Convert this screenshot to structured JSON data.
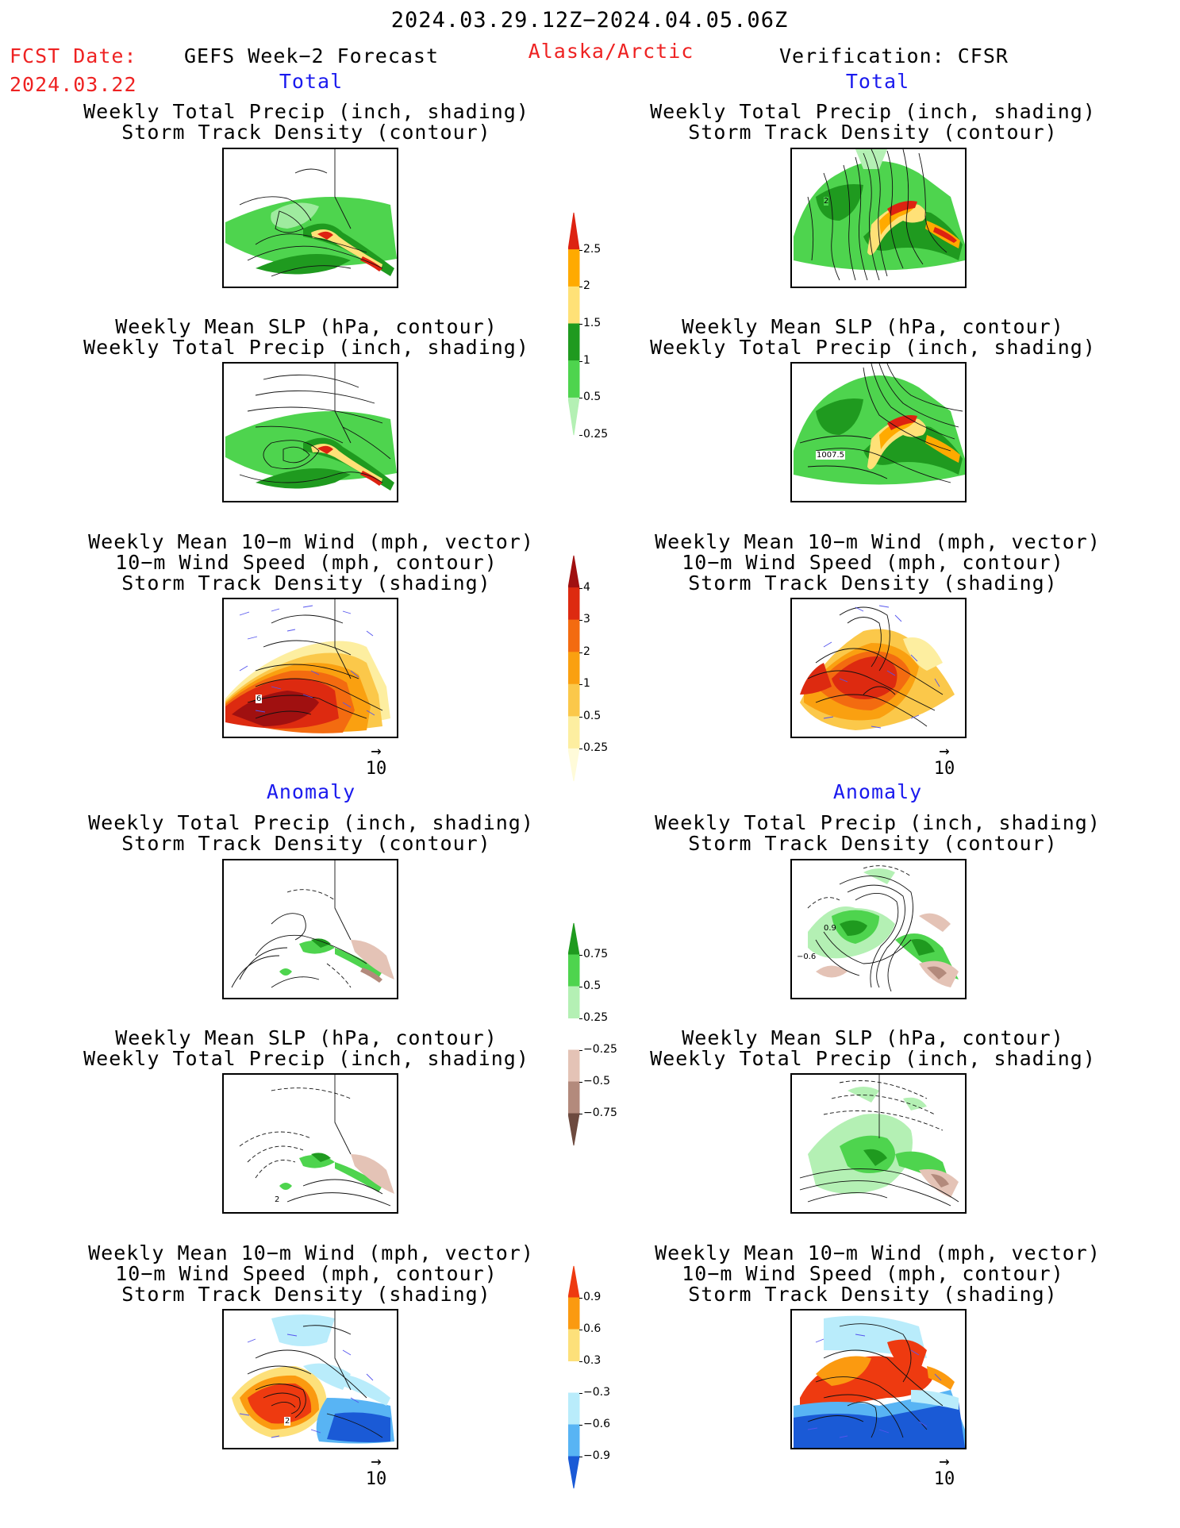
{
  "header": {
    "date_range": "2024.03.29.12Z−2024.04.05.06Z",
    "fcst_label": "FCST Date:",
    "fcst_date": "2024.03.22",
    "product": "GEFS Week−2 Forecast",
    "region": "Alaska/Arctic",
    "verification": "Verification: CFSR"
  },
  "sections": {
    "total_left": "Total",
    "total_right": "Total",
    "anomaly_left": "Anomaly",
    "anomaly_right": "Anomaly"
  },
  "panel_titles": {
    "precip_storm": [
      "Weekly Total Precip (inch, shading)",
      "Storm Track Density (contour)"
    ],
    "slp_precip": [
      "Weekly Mean SLP (hPa, contour)",
      "Weekly Total Precip (inch, shading)"
    ],
    "wind_storm": [
      "Weekly Mean 10−m Wind (mph, vector)",
      "10−m Wind Speed (mph, contour)",
      "Storm Track Density (shading)"
    ]
  },
  "map_labels": {
    "r1_right": "2",
    "r2_right": "1007.5",
    "r3_left": "6",
    "r4_right_a": "0.9",
    "r4_right_b": "−0.6",
    "r5_left": "2",
    "r6_left": "2"
  },
  "vector_scale": "10",
  "colorbars": {
    "precip_total": {
      "labels": [
        "2.5",
        "2",
        "1.5",
        "1",
        "0.5",
        "0.25"
      ],
      "colors": [
        "#dd2211",
        "#ffaa00",
        "#ffe177",
        "#1f9a1f",
        "#4ed44e",
        "#b4f0b4"
      ]
    },
    "storm_total": {
      "labels": [
        "4",
        "3",
        "2",
        "1",
        "0.5",
        "0.25"
      ],
      "colors": [
        "#a01010",
        "#dd2a10",
        "#f36b10",
        "#faa010",
        "#fbc84a",
        "#fdeea0",
        "#fffbd9"
      ]
    },
    "precip_anom": {
      "labels": [
        "0.75",
        "0.5",
        "0.25",
        "−0.25",
        "−0.5",
        "−0.75"
      ],
      "colors": [
        "#1f9a1f",
        "#4ed44e",
        "#b4f0b4",
        "#ffffff",
        "#e4c3b6",
        "#b38a7c",
        "#6d4a3f"
      ]
    },
    "storm_anom": {
      "labels": [
        "0.9",
        "0.6",
        "0.3",
        "−0.3",
        "−0.6",
        "−0.9"
      ],
      "colors": [
        "#ee3a10",
        "#fb9a10",
        "#fde07a",
        "#ffffff",
        "#b9ecfb",
        "#58b4f4",
        "#1a5ad6"
      ]
    }
  }
}
